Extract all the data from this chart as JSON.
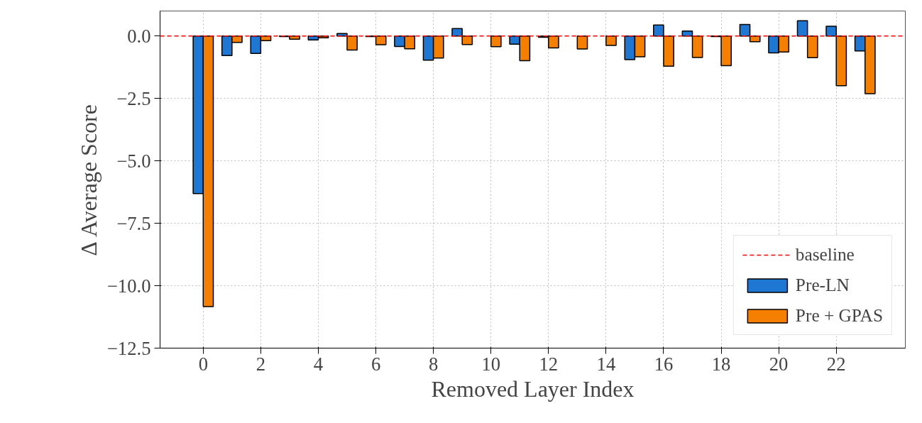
{
  "chart_data": {
    "type": "bar",
    "xlabel": "Removed Layer Index",
    "ylabel": "Δ Average Score",
    "x": [
      0,
      1,
      2,
      3,
      4,
      5,
      6,
      7,
      8,
      9,
      10,
      11,
      12,
      13,
      14,
      15,
      16,
      17,
      18,
      19,
      20,
      21,
      22,
      23
    ],
    "series": [
      {
        "name": "Pre-LN",
        "color": "#1f77d4",
        "values": [
          -6.31,
          -0.78,
          -0.7,
          -0.02,
          -0.16,
          0.1,
          -0.02,
          -0.42,
          -0.97,
          0.3,
          null,
          -0.33,
          -0.05,
          null,
          null,
          -0.95,
          0.44,
          0.2,
          -0.02,
          0.46,
          -0.68,
          0.61,
          0.39,
          -0.6
        ]
      },
      {
        "name": "Pre + GPAS",
        "color": "#f57f00",
        "values": [
          -10.84,
          -0.26,
          -0.19,
          -0.13,
          -0.07,
          -0.56,
          -0.35,
          -0.51,
          -0.88,
          -0.34,
          -0.43,
          -0.99,
          -0.48,
          -0.52,
          -0.38,
          -0.83,
          -1.21,
          -0.86,
          -1.19,
          -0.23,
          -0.64,
          -0.87,
          -1.99,
          -2.31
        ]
      }
    ],
    "xlim": [
      -1.5,
      24.4
    ],
    "xticks": [
      0,
      2,
      4,
      6,
      8,
      10,
      12,
      14,
      16,
      18,
      20,
      22
    ],
    "ylim": [
      -12.5,
      1.0
    ],
    "yticks": [
      {
        "value": 0.0,
        "label": "0.0"
      },
      {
        "value": -2.5,
        "label": "−2.5"
      },
      {
        "value": -5.0,
        "label": "−5.0"
      },
      {
        "value": -7.5,
        "label": "−7.5"
      },
      {
        "value": -10.0,
        "label": "−10.0"
      },
      {
        "value": -12.5,
        "label": "−12.5"
      }
    ],
    "ref_lines": [
      {
        "axis": "y",
        "value": 0,
        "label": "baseline",
        "color": "#ff0000",
        "line_style": "dashed"
      }
    ],
    "grid": true,
    "legend": "bottom right"
  }
}
